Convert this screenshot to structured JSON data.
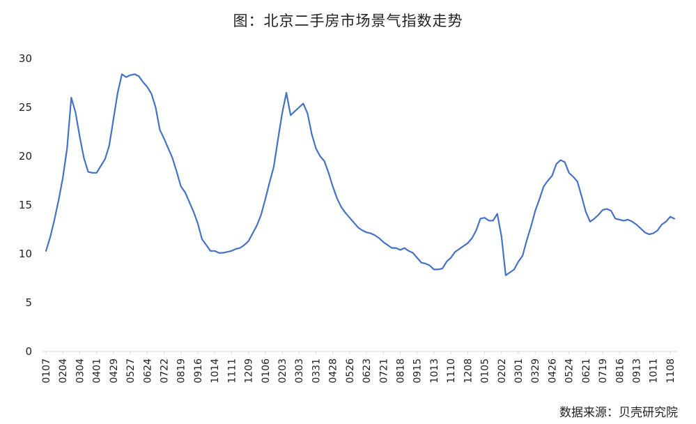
{
  "title": "图：北京二手房市场景气指数走势",
  "source": "数据来源：贝壳研究院",
  "colors": {
    "line": "#4472C4",
    "axis": "#D9D9D9",
    "text": "#222222"
  },
  "chart_data": {
    "type": "line",
    "title": "图：北京二手房市场景气指数走势",
    "xlabel": "",
    "ylabel": "",
    "ylim": [
      0,
      30
    ],
    "yticks": [
      0,
      5,
      10,
      15,
      20,
      25,
      30
    ],
    "grid": false,
    "legend": "none",
    "tick_labels": [
      "0107",
      "0204",
      "0304",
      "0401",
      "0429",
      "0527",
      "0624",
      "0722",
      "0819",
      "0916",
      "1014",
      "1111",
      "1209",
      "0106",
      "0203",
      "0303",
      "0331",
      "0428",
      "0526",
      "0623",
      "0721",
      "0818",
      "0915",
      "1013",
      "1110",
      "1208",
      "0105",
      "0202",
      "0301",
      "0329",
      "0426",
      "0524",
      "0621",
      "0719",
      "0816",
      "0913",
      "1011",
      "1108"
    ],
    "series": [
      {
        "name": "",
        "values": [
          10.3,
          11.7,
          13.5,
          15.5,
          17.8,
          20.8,
          26.0,
          24.5,
          22.0,
          19.8,
          18.4,
          18.3,
          18.3,
          19.0,
          19.7,
          21.1,
          23.8,
          26.5,
          28.4,
          28.1,
          28.3,
          28.4,
          28.2,
          27.6,
          27.1,
          26.4,
          25.0,
          22.7,
          21.8,
          20.8,
          19.8,
          18.4,
          16.9,
          16.3,
          15.3,
          14.3,
          13.1,
          11.5,
          10.9,
          10.3,
          10.3,
          10.1,
          10.1,
          10.2,
          10.3,
          10.5,
          10.6,
          10.9,
          11.3,
          12.1,
          12.9,
          14.0,
          15.6,
          17.3,
          18.9,
          21.7,
          24.4,
          26.5,
          24.2,
          24.6,
          25.0,
          25.4,
          24.4,
          22.3,
          20.8,
          20.0,
          19.5,
          18.3,
          16.9,
          15.7,
          14.8,
          14.2,
          13.7,
          13.2,
          12.7,
          12.4,
          12.2,
          12.1,
          11.9,
          11.6,
          11.2,
          10.9,
          10.6,
          10.6,
          10.4,
          10.6,
          10.3,
          10.1,
          9.6,
          9.1,
          9.0,
          8.8,
          8.4,
          8.4,
          8.5,
          9.2,
          9.6,
          10.2,
          10.5,
          10.8,
          11.1,
          11.6,
          12.4,
          13.6,
          13.7,
          13.4,
          13.4,
          14.1,
          11.8,
          7.8,
          8.1,
          8.4,
          9.2,
          9.8,
          11.4,
          12.8,
          14.4,
          15.6,
          16.9,
          17.5,
          18.0,
          19.2,
          19.6,
          19.4,
          18.3,
          17.9,
          17.4,
          15.9,
          14.3,
          13.3,
          13.6,
          14.0,
          14.5,
          14.6,
          14.4,
          13.6,
          13.5,
          13.4,
          13.5,
          13.3,
          13.0,
          12.6,
          12.2,
          12.0,
          12.1,
          12.4,
          13.0,
          13.3,
          13.8,
          13.6
        ]
      }
    ]
  }
}
